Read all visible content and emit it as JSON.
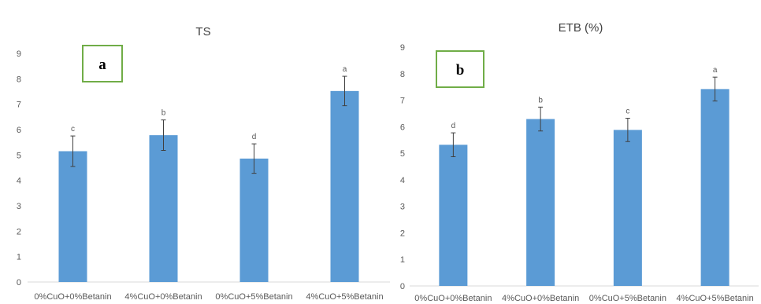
{
  "chart_data": [
    {
      "type": "bar",
      "title": "TS",
      "panel_label": "a",
      "categories": [
        "0%CuO+0%Betanin",
        "4%CuO+0%Betanin",
        "0%CuO+5%Betanin",
        "4%CuO+5%Betanin"
      ],
      "values": [
        5.15,
        5.78,
        4.86,
        7.52
      ],
      "errors": [
        0.6,
        0.6,
        0.58,
        0.58
      ],
      "significance": [
        "c",
        "b",
        "d",
        "a"
      ],
      "ylim": [
        0,
        9
      ],
      "yticks": [
        "0",
        "1",
        "2",
        "3",
        "4",
        "5",
        "6",
        "7",
        "8",
        "9"
      ],
      "xlabel": "",
      "ylabel": "",
      "grid": false,
      "bar_color": "#5b9bd5"
    },
    {
      "type": "bar",
      "title": "ETB (%)",
      "panel_label": "b",
      "categories": [
        "0%CuO+0%Betanin",
        "4%CuO+0%Betanin",
        "0%CuO+5%Betanin",
        "4%CuO+5%Betanin"
      ],
      "values": [
        5.32,
        6.29,
        5.88,
        7.42
      ],
      "errors": [
        0.45,
        0.45,
        0.44,
        0.45
      ],
      "significance": [
        "d",
        "b",
        "c",
        "a"
      ],
      "ylim": [
        0,
        9
      ],
      "yticks": [
        "0",
        "1",
        "2",
        "3",
        "4",
        "5",
        "6",
        "7",
        "8",
        "9"
      ],
      "xlabel": "",
      "ylabel": "",
      "grid": false,
      "bar_color": "#5b9bd5"
    }
  ],
  "colors": {
    "bar": "#5b9bd5",
    "badge_border": "#70ad47",
    "axis": "#d9d9d9"
  }
}
